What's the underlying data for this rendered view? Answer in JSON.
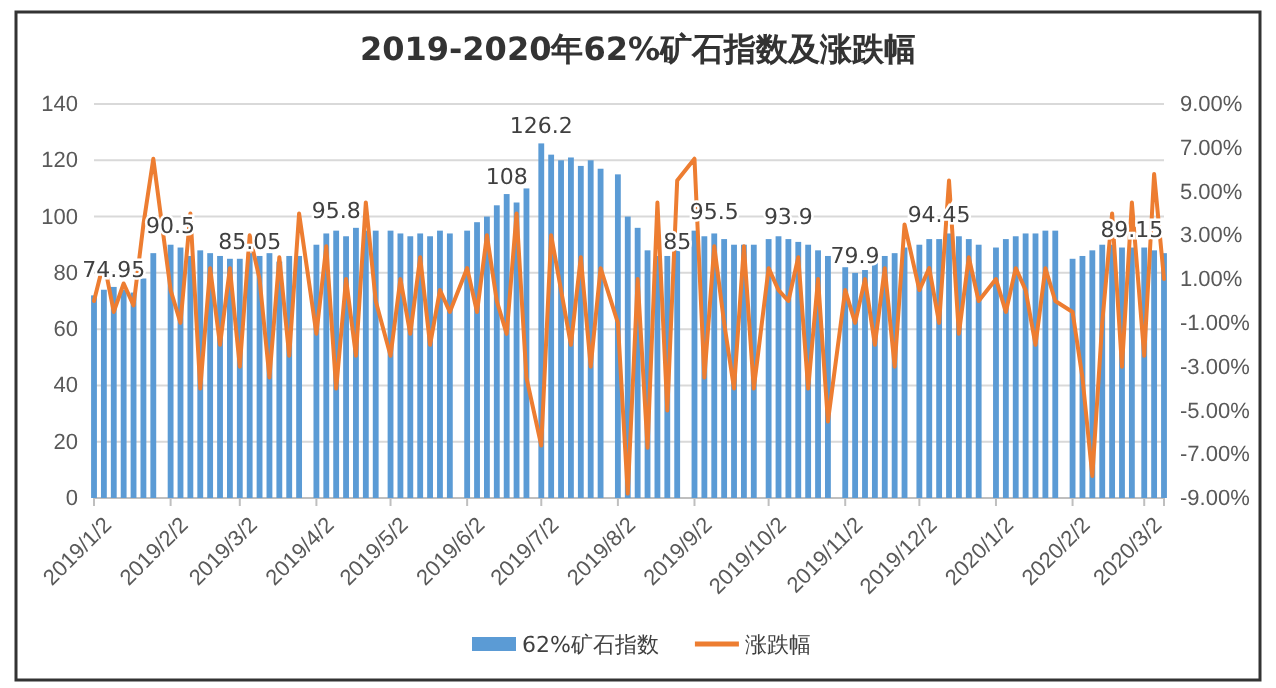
{
  "chart_data": {
    "type": "bar",
    "title": "2019-2020年62%矿石指数及涨跌幅",
    "x": [
      "2019-01-02",
      "2019-01-06",
      "2019-01-10",
      "2019-01-14",
      "2019-01-18",
      "2019-01-22",
      "2019-01-26",
      "2019-02-02",
      "2019-02-06",
      "2019-02-10",
      "2019-02-14",
      "2019-02-18",
      "2019-02-22",
      "2019-02-26",
      "2019-03-02",
      "2019-03-06",
      "2019-03-10",
      "2019-03-14",
      "2019-03-18",
      "2019-03-22",
      "2019-03-26",
      "2019-04-02",
      "2019-04-06",
      "2019-04-10",
      "2019-04-14",
      "2019-04-18",
      "2019-04-22",
      "2019-04-26",
      "2019-05-02",
      "2019-05-06",
      "2019-05-10",
      "2019-05-14",
      "2019-05-18",
      "2019-05-22",
      "2019-05-26",
      "2019-06-02",
      "2019-06-06",
      "2019-06-10",
      "2019-06-14",
      "2019-06-18",
      "2019-06-22",
      "2019-06-26",
      "2019-07-02",
      "2019-07-06",
      "2019-07-10",
      "2019-07-14",
      "2019-07-18",
      "2019-07-22",
      "2019-07-26",
      "2019-08-02",
      "2019-08-06",
      "2019-08-10",
      "2019-08-14",
      "2019-08-18",
      "2019-08-22",
      "2019-08-26",
      "2019-09-02",
      "2019-09-06",
      "2019-09-10",
      "2019-09-14",
      "2019-09-18",
      "2019-09-22",
      "2019-09-26",
      "2019-10-02",
      "2019-10-06",
      "2019-10-10",
      "2019-10-14",
      "2019-10-18",
      "2019-10-22",
      "2019-10-26",
      "2019-11-02",
      "2019-11-06",
      "2019-11-10",
      "2019-11-14",
      "2019-11-18",
      "2019-11-22",
      "2019-11-26",
      "2019-12-02",
      "2019-12-06",
      "2019-12-10",
      "2019-12-14",
      "2019-12-18",
      "2019-12-22",
      "2019-12-26",
      "2020-01-02",
      "2020-01-06",
      "2020-01-10",
      "2020-01-14",
      "2020-01-18",
      "2020-01-22",
      "2020-01-26",
      "2020-02-02",
      "2020-02-06",
      "2020-02-10",
      "2020-02-14",
      "2020-02-18",
      "2020-02-22",
      "2020-02-26",
      "2020-03-02",
      "2020-03-06",
      "2020-03-10"
    ],
    "series": [
      {
        "name": "62%矿石指数",
        "color": "#5b9bd5",
        "values": [
          72,
          74,
          75,
          74,
          73,
          78,
          87,
          90,
          89,
          86,
          88,
          87,
          86,
          85,
          85,
          87,
          86,
          87,
          84,
          86,
          86,
          90,
          94,
          95,
          93,
          96,
          95,
          95,
          95,
          94,
          93,
          94,
          93,
          95,
          94,
          95,
          98,
          100,
          104,
          108,
          105,
          110,
          126,
          122,
          120,
          121,
          118,
          120,
          117,
          115,
          100,
          96,
          88,
          86,
          86,
          88,
          95,
          93,
          94,
          92,
          90,
          90,
          90,
          92,
          93,
          92,
          91,
          90,
          88,
          86,
          82,
          80,
          81,
          85,
          86,
          87,
          89,
          90,
          92,
          92,
          94,
          93,
          92,
          90,
          89,
          92,
          93,
          94,
          94,
          95,
          95,
          85,
          86,
          88,
          90,
          90,
          89,
          89,
          89,
          88,
          87
        ]
      },
      {
        "name": "涨跌幅",
        "type": "line",
        "axis": "y2",
        "color": "#ed7d31",
        "values": [
          0.0,
          1.8,
          -0.5,
          0.8,
          -0.2,
          3.5,
          6.5,
          0.5,
          -1.0,
          4.0,
          -4.0,
          1.5,
          -2.0,
          1.5,
          -3.0,
          3.0,
          1.0,
          -3.5,
          2.0,
          -2.5,
          4.0,
          -1.5,
          2.5,
          -4.0,
          1.0,
          -2.5,
          4.5,
          0.0,
          -2.5,
          1.0,
          -1.5,
          2.0,
          -2.0,
          0.5,
          -0.5,
          1.5,
          -0.5,
          3.0,
          0.0,
          -1.5,
          4.0,
          -3.5,
          -6.6,
          3.0,
          0.5,
          -2.0,
          2.0,
          -3.0,
          1.5,
          -1.0,
          -8.8,
          1.0,
          -6.7,
          4.5,
          -5.0,
          5.5,
          6.5,
          -3.5,
          2.5,
          -1.0,
          -4.0,
          2.5,
          -4.0,
          1.5,
          0.5,
          0.0,
          2.0,
          -4.0,
          1.0,
          -5.5,
          0.5,
          -1.0,
          1.0,
          -2.0,
          1.5,
          -3.0,
          3.5,
          0.5,
          1.5,
          -1.0,
          5.5,
          -1.5,
          2.0,
          0.0,
          1.0,
          -0.5,
          1.5,
          0.5,
          -2.0,
          1.5,
          0.0,
          -0.5,
          -3.5,
          -8.0,
          -1.0,
          4.0,
          -3.0,
          4.5,
          -2.5,
          5.8,
          1.0
        ]
      }
    ],
    "xlim": [
      "2019-01-02",
      "2020-03-10"
    ],
    "xticks": [
      {
        "value": "2019-01-02",
        "label": "2019/1/2"
      },
      {
        "value": "2019-02-02",
        "label": "2019/2/2"
      },
      {
        "value": "2019-03-02",
        "label": "2019/3/2"
      },
      {
        "value": "2019-04-02",
        "label": "2019/4/2"
      },
      {
        "value": "2019-05-02",
        "label": "2019/5/2"
      },
      {
        "value": "2019-06-02",
        "label": "2019/6/2"
      },
      {
        "value": "2019-07-02",
        "label": "2019/7/2"
      },
      {
        "value": "2019-08-02",
        "label": "2019/8/2"
      },
      {
        "value": "2019-09-02",
        "label": "2019/9/2"
      },
      {
        "value": "2019-10-02",
        "label": "2019/10/2"
      },
      {
        "value": "2019-11-02",
        "label": "2019/11/2"
      },
      {
        "value": "2019-12-02",
        "label": "2019/12/2"
      },
      {
        "value": "2020-01-02",
        "label": "2020/1/2"
      },
      {
        "value": "2020-02-02",
        "label": "2020/2/2"
      },
      {
        "value": "2020-03-02",
        "label": "2020/3/2"
      }
    ],
    "ylim": [
      0,
      140
    ],
    "yticks": [
      0,
      20,
      40,
      60,
      80,
      100,
      120,
      140
    ],
    "y2lim": [
      -9,
      9
    ],
    "y2ticks": [
      {
        "value": -9,
        "label": "-9.00%"
      },
      {
        "value": -7,
        "label": "-7.00%"
      },
      {
        "value": -5,
        "label": "-5.00%"
      },
      {
        "value": -3,
        "label": "-3.00%"
      },
      {
        "value": -1,
        "label": "-1.00%"
      },
      {
        "value": 1,
        "label": "1.00%"
      },
      {
        "value": 3,
        "label": "3.00%"
      },
      {
        "value": 5,
        "label": "5.00%"
      },
      {
        "value": 7,
        "label": "7.00%"
      },
      {
        "value": 9,
        "label": "9.00%"
      }
    ],
    "annotations": [
      {
        "text": "74.95",
        "x": "2019-01-10",
        "y": 74.95
      },
      {
        "text": "90.5",
        "x": "2019-02-02",
        "y": 90.5
      },
      {
        "text": "85.05",
        "x": "2019-03-06",
        "y": 85.05
      },
      {
        "text": "95.8",
        "x": "2019-04-10",
        "y": 95.8
      },
      {
        "text": "108",
        "x": "2019-06-18",
        "y": 108
      },
      {
        "text": "126.2",
        "x": "2019-07-02",
        "y": 126.2
      },
      {
        "text": "85",
        "x": "2019-08-26",
        "y": 85
      },
      {
        "text": "95.5",
        "x": "2019-09-10",
        "y": 95.5
      },
      {
        "text": "93.9",
        "x": "2019-10-10",
        "y": 93.9
      },
      {
        "text": "79.9",
        "x": "2019-11-06",
        "y": 79.9
      },
      {
        "text": "94.45",
        "x": "2019-12-10",
        "y": 94.45
      },
      {
        "text": "89.15",
        "x": "2020-02-26",
        "y": 89.15
      }
    ],
    "grid": "y",
    "legend": "bottom"
  }
}
